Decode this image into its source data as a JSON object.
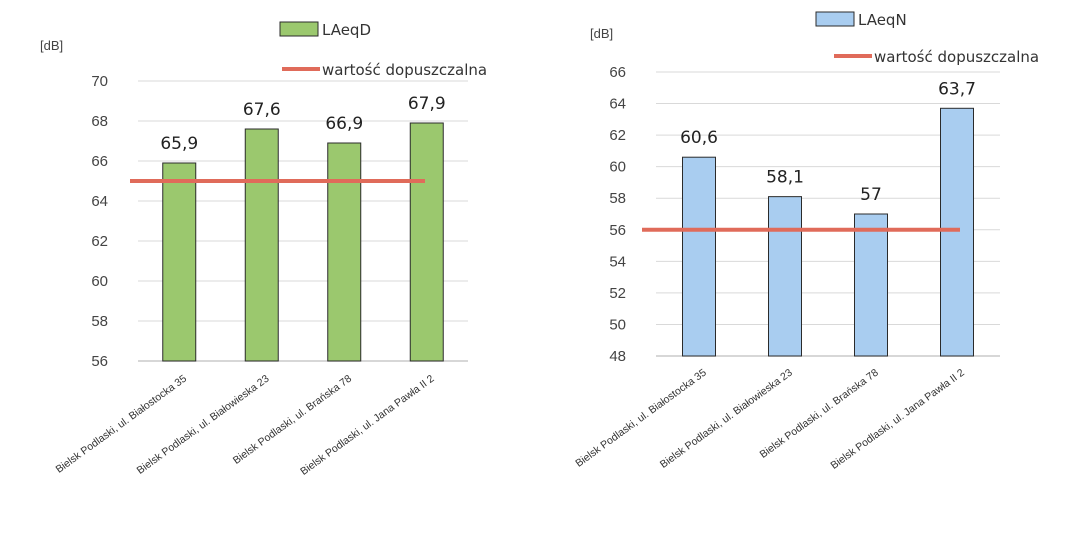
{
  "chart_data": [
    {
      "type": "bar",
      "title": "",
      "ylabel": "[dB]",
      "xlabel": "",
      "ylim": [
        56,
        70
      ],
      "yticks": [
        56,
        58,
        60,
        62,
        64,
        66,
        68,
        70
      ],
      "grid": true,
      "categories": [
        "Bielsk Podlaski, ul. Białostocka 35",
        "Bielsk Podlaski, ul. Białowieska 23",
        "Bielsk Podlaski, ul. Brańska 78",
        "Bielsk Podlaski, ul. Jana Pawła II 2"
      ],
      "series": [
        {
          "name": "LAeqD",
          "values": [
            65.9,
            67.6,
            66.9,
            67.9
          ],
          "labels": [
            "65,9",
            "67,6",
            "66,9",
            "67,9"
          ],
          "color": "#9bc86e"
        }
      ],
      "reference_line": {
        "name": "wartość dopuszczalna",
        "value": 65,
        "color": "#e06b5a"
      },
      "legend_position": "top"
    },
    {
      "type": "bar",
      "title": "",
      "ylabel": "[dB]",
      "xlabel": "",
      "ylim": [
        48,
        66
      ],
      "yticks": [
        48,
        50,
        52,
        54,
        56,
        58,
        60,
        62,
        64,
        66
      ],
      "grid": true,
      "categories": [
        "Bielsk Podlaski, ul. Białostocka 35",
        "Bielsk Podlaski, ul. Białowieska 23",
        "Bielsk Podlaski, ul. Brańska 78",
        "Bielsk Podlaski, ul. Jana Pawła II 2"
      ],
      "series": [
        {
          "name": "LAeqN",
          "values": [
            60.6,
            58.1,
            57,
            63.7
          ],
          "labels": [
            "60,6",
            "58,1",
            "57",
            "63,7"
          ],
          "color": "#a9cdf0"
        }
      ],
      "reference_line": {
        "name": "wartość dopuszczalna",
        "value": 56,
        "color": "#e06b5a"
      },
      "legend_position": "top"
    }
  ],
  "colors": {
    "bar_stroke": "#2b2b2b",
    "grid": "#d9d9d9",
    "axis": "#bfbfbf"
  }
}
